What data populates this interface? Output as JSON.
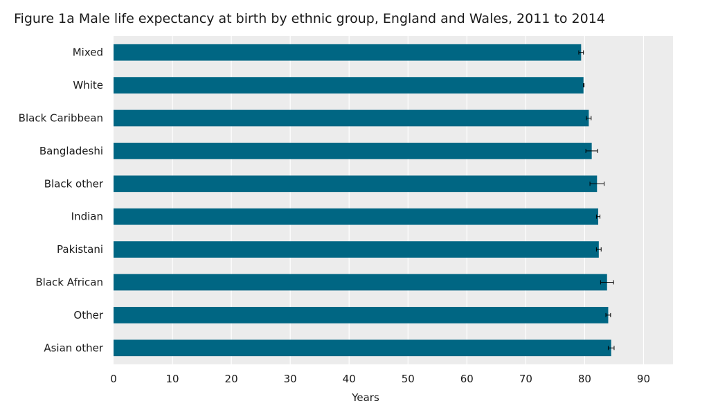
{
  "chart_data": {
    "type": "bar",
    "orientation": "horizontal",
    "title": "Figure 1a Male life expectancy at birth by ethnic group, England and Wales, 2011 to 2014",
    "xlabel": "Years",
    "ylabel": "",
    "xlim": [
      0,
      95
    ],
    "xticks": [
      0,
      10,
      20,
      30,
      40,
      50,
      60,
      70,
      80,
      90
    ],
    "grid": true,
    "bar_color": "#006683",
    "plot_background": "#ececec",
    "grid_color": "#ffffff",
    "categories": [
      "Mixed",
      "White",
      "Black Caribbean",
      "Bangladeshi",
      "Black other",
      "Indian",
      "Pakistani",
      "Black African",
      "Other",
      "Asian other"
    ],
    "values": [
      79.4,
      79.8,
      80.7,
      81.2,
      82.1,
      82.3,
      82.4,
      83.8,
      84.0,
      84.5
    ],
    "error_low": [
      79.0,
      79.8,
      80.3,
      80.2,
      80.9,
      82.0,
      82.0,
      82.7,
      83.6,
      84.0
    ],
    "error_high": [
      79.8,
      79.9,
      81.1,
      82.2,
      83.3,
      82.6,
      82.8,
      84.9,
      84.4,
      85.0
    ]
  }
}
